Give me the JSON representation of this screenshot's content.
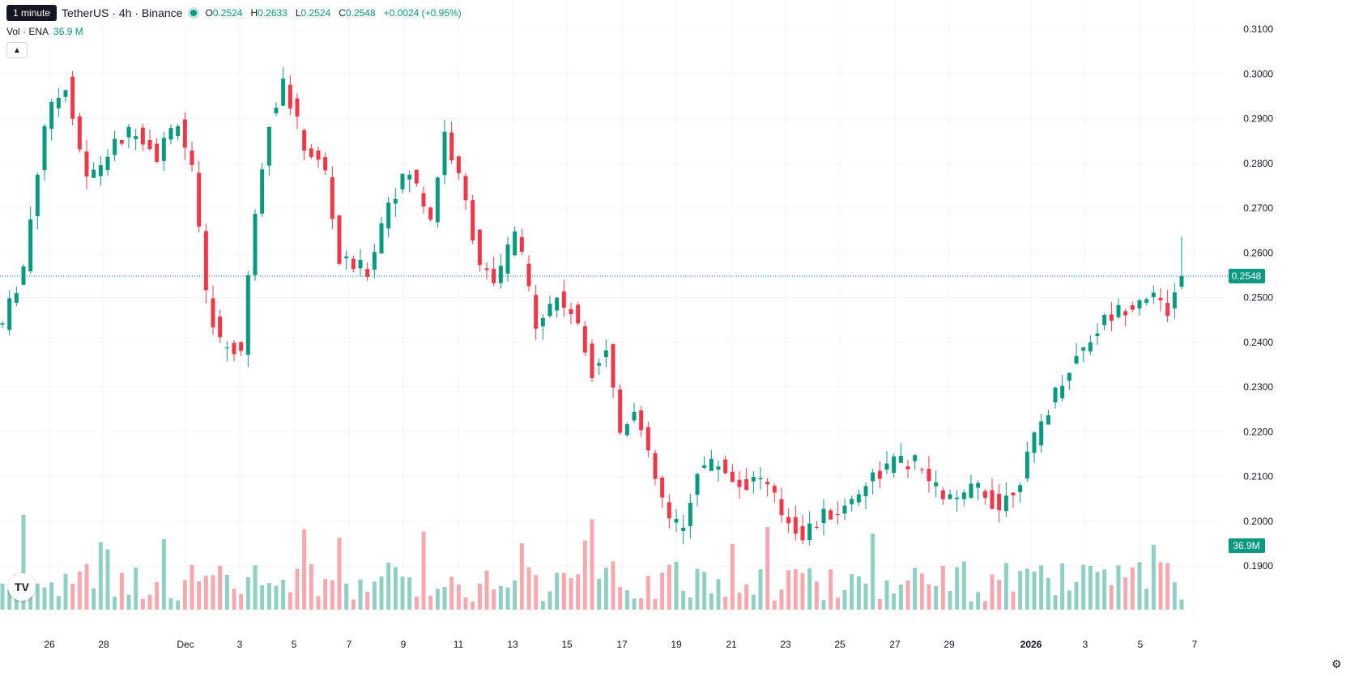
{
  "header": {
    "tooltip": "1 minute",
    "symbol": "TetherUS · 4h · Binance",
    "o_label": "O",
    "o_value": "0.2524",
    "h_label": "H",
    "h_value": "0.2633",
    "l_label": "L",
    "l_value": "0.2524",
    "c_label": "C",
    "c_value": "0.2548",
    "change": "+0.0024 (+0.95%)"
  },
  "volume": {
    "label": "Vol · ENA",
    "value": "36.9 M"
  },
  "icons": {
    "collapse": "chevron-up-icon",
    "logo": "tradingview-logo",
    "settings": "gear-icon"
  },
  "logo_text": "TV",
  "chart_data": {
    "type": "candlestick",
    "timeframe": "4h",
    "y_axis": {
      "ticks": [
        "0.3100",
        "0.3000",
        "0.2900",
        "0.2800",
        "0.2700",
        "0.2600",
        "0.2500",
        "0.2400",
        "0.2300",
        "0.2200",
        "0.2100",
        "0.2000",
        "0.1900"
      ],
      "range": [
        0.1835,
        0.3108
      ]
    },
    "x_axis": {
      "ticks": [
        "26",
        "28",
        "Dec",
        "3",
        "5",
        "7",
        "9",
        "11",
        "13",
        "15",
        "17",
        "19",
        "21",
        "23",
        "25",
        "27",
        "29",
        "2026",
        "3",
        "5",
        "7"
      ]
    },
    "last_price": "0.2548",
    "last_volume_label": "36.9M",
    "colors": {
      "up": "#089981",
      "down": "#f23645",
      "vol_up": "#8fcfc4",
      "vol_down": "#f7a8ae"
    },
    "price_path": [
      [
        0,
        0.244
      ],
      [
        3,
        0.257
      ],
      [
        6,
        0.289
      ],
      [
        9,
        0.298
      ],
      [
        12,
        0.276
      ],
      [
        16,
        0.284
      ],
      [
        19,
        0.288
      ],
      [
        22,
        0.282
      ],
      [
        25,
        0.29
      ],
      [
        27,
        0.278
      ],
      [
        29,
        0.25
      ],
      [
        31,
        0.24
      ],
      [
        34,
        0.238
      ],
      [
        36,
        0.27
      ],
      [
        38,
        0.29
      ],
      [
        40,
        0.298
      ],
      [
        43,
        0.284
      ],
      [
        46,
        0.278
      ],
      [
        48,
        0.258
      ],
      [
        52,
        0.256
      ],
      [
        55,
        0.272
      ],
      [
        58,
        0.278
      ],
      [
        61,
        0.268
      ],
      [
        63,
        0.287
      ],
      [
        66,
        0.271
      ],
      [
        68,
        0.258
      ],
      [
        70,
        0.252
      ],
      [
        73,
        0.265
      ],
      [
        76,
        0.245
      ],
      [
        79,
        0.25
      ],
      [
        81,
        0.247
      ],
      [
        84,
        0.234
      ],
      [
        86,
        0.239
      ],
      [
        88,
        0.22
      ],
      [
        90,
        0.226
      ],
      [
        92,
        0.214
      ],
      [
        95,
        0.2
      ],
      [
        97,
        0.198
      ],
      [
        99,
        0.212
      ],
      [
        102,
        0.213
      ],
      [
        105,
        0.208
      ],
      [
        108,
        0.21
      ],
      [
        111,
        0.202
      ],
      [
        114,
        0.197
      ],
      [
        117,
        0.201
      ],
      [
        120,
        0.203
      ],
      [
        123,
        0.209
      ],
      [
        127,
        0.213
      ],
      [
        130,
        0.213
      ],
      [
        133,
        0.207
      ],
      [
        136,
        0.204
      ],
      [
        139,
        0.208
      ],
      [
        142,
        0.203
      ],
      [
        145,
        0.21
      ],
      [
        148,
        0.222
      ],
      [
        151,
        0.232
      ],
      [
        154,
        0.239
      ],
      [
        157,
        0.245
      ],
      [
        160,
        0.248
      ],
      [
        163,
        0.251
      ],
      [
        166,
        0.247
      ],
      [
        168,
        0.2548
      ]
    ],
    "volume_range_M": [
      0,
      100
    ]
  }
}
